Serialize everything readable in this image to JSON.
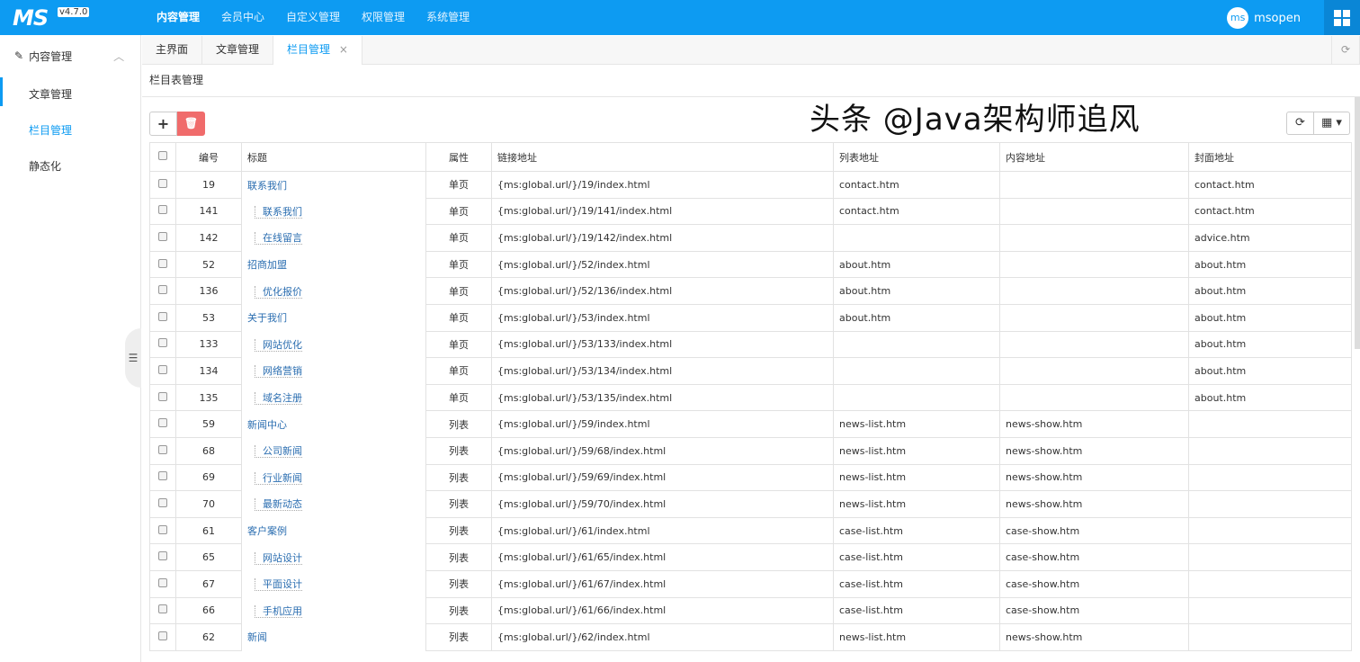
{
  "header": {
    "logo": "MS",
    "version": "v4.7.0",
    "nav": [
      "内容管理",
      "会员中心",
      "自定义管理",
      "权限管理",
      "系统管理"
    ],
    "active_nav": 0,
    "user_avatar": "ms",
    "user_name": "msopen"
  },
  "sidebar": {
    "group": "内容管理",
    "items": [
      {
        "label": "文章管理"
      },
      {
        "label": "栏目管理",
        "active": true
      },
      {
        "label": "静态化"
      }
    ]
  },
  "tabs": [
    {
      "label": "主界面"
    },
    {
      "label": "文章管理"
    },
    {
      "label": "栏目管理",
      "active": true,
      "close": "×"
    }
  ],
  "page_title": "栏目表管理",
  "table": {
    "headers": [
      "编号",
      "标题",
      "属性",
      "链接地址",
      "列表地址",
      "内容地址",
      "封面地址"
    ],
    "rows": [
      [
        "19",
        "联系我们",
        false,
        "单页",
        "{ms:global.url/}/19/index.html",
        "contact.htm",
        "",
        "contact.htm"
      ],
      [
        "141",
        "联系我们",
        true,
        "单页",
        "{ms:global.url/}/19/141/index.html",
        "contact.htm",
        "",
        "contact.htm"
      ],
      [
        "142",
        "在线留言",
        true,
        "单页",
        "{ms:global.url/}/19/142/index.html",
        "",
        "",
        "advice.htm"
      ],
      [
        "52",
        "招商加盟",
        false,
        "单页",
        "{ms:global.url/}/52/index.html",
        "about.htm",
        "",
        "about.htm"
      ],
      [
        "136",
        "优化报价",
        true,
        "单页",
        "{ms:global.url/}/52/136/index.html",
        "about.htm",
        "",
        "about.htm"
      ],
      [
        "53",
        "关于我们",
        false,
        "单页",
        "{ms:global.url/}/53/index.html",
        "about.htm",
        "",
        "about.htm"
      ],
      [
        "133",
        "网站优化",
        true,
        "单页",
        "{ms:global.url/}/53/133/index.html",
        "",
        "",
        "about.htm"
      ],
      [
        "134",
        "网络营销",
        true,
        "单页",
        "{ms:global.url/}/53/134/index.html",
        "",
        "",
        "about.htm"
      ],
      [
        "135",
        "域名注册",
        true,
        "单页",
        "{ms:global.url/}/53/135/index.html",
        "",
        "",
        "about.htm"
      ],
      [
        "59",
        "新闻中心",
        false,
        "列表",
        "{ms:global.url/}/59/index.html",
        "news-list.htm",
        "news-show.htm",
        ""
      ],
      [
        "68",
        "公司新闻",
        true,
        "列表",
        "{ms:global.url/}/59/68/index.html",
        "news-list.htm",
        "news-show.htm",
        ""
      ],
      [
        "69",
        "行业新闻",
        true,
        "列表",
        "{ms:global.url/}/59/69/index.html",
        "news-list.htm",
        "news-show.htm",
        ""
      ],
      [
        "70",
        "最新动态",
        true,
        "列表",
        "{ms:global.url/}/59/70/index.html",
        "news-list.htm",
        "news-show.htm",
        ""
      ],
      [
        "61",
        "客户案例",
        false,
        "列表",
        "{ms:global.url/}/61/index.html",
        "case-list.htm",
        "case-show.htm",
        ""
      ],
      [
        "65",
        "网站设计",
        true,
        "列表",
        "{ms:global.url/}/61/65/index.html",
        "case-list.htm",
        "case-show.htm",
        ""
      ],
      [
        "67",
        "平面设计",
        true,
        "列表",
        "{ms:global.url/}/61/67/index.html",
        "case-list.htm",
        "case-show.htm",
        ""
      ],
      [
        "66",
        "手机应用",
        true,
        "列表",
        "{ms:global.url/}/61/66/index.html",
        "case-list.htm",
        "case-show.htm",
        ""
      ],
      [
        "62",
        "新闻",
        false,
        "列表",
        "{ms:global.url/}/62/index.html",
        "news-list.htm",
        "news-show.htm",
        ""
      ]
    ]
  },
  "watermark": "头条 @Java架构师追风",
  "colors": {
    "primary": "#0d9bf2",
    "danger": "#f06b6b"
  }
}
